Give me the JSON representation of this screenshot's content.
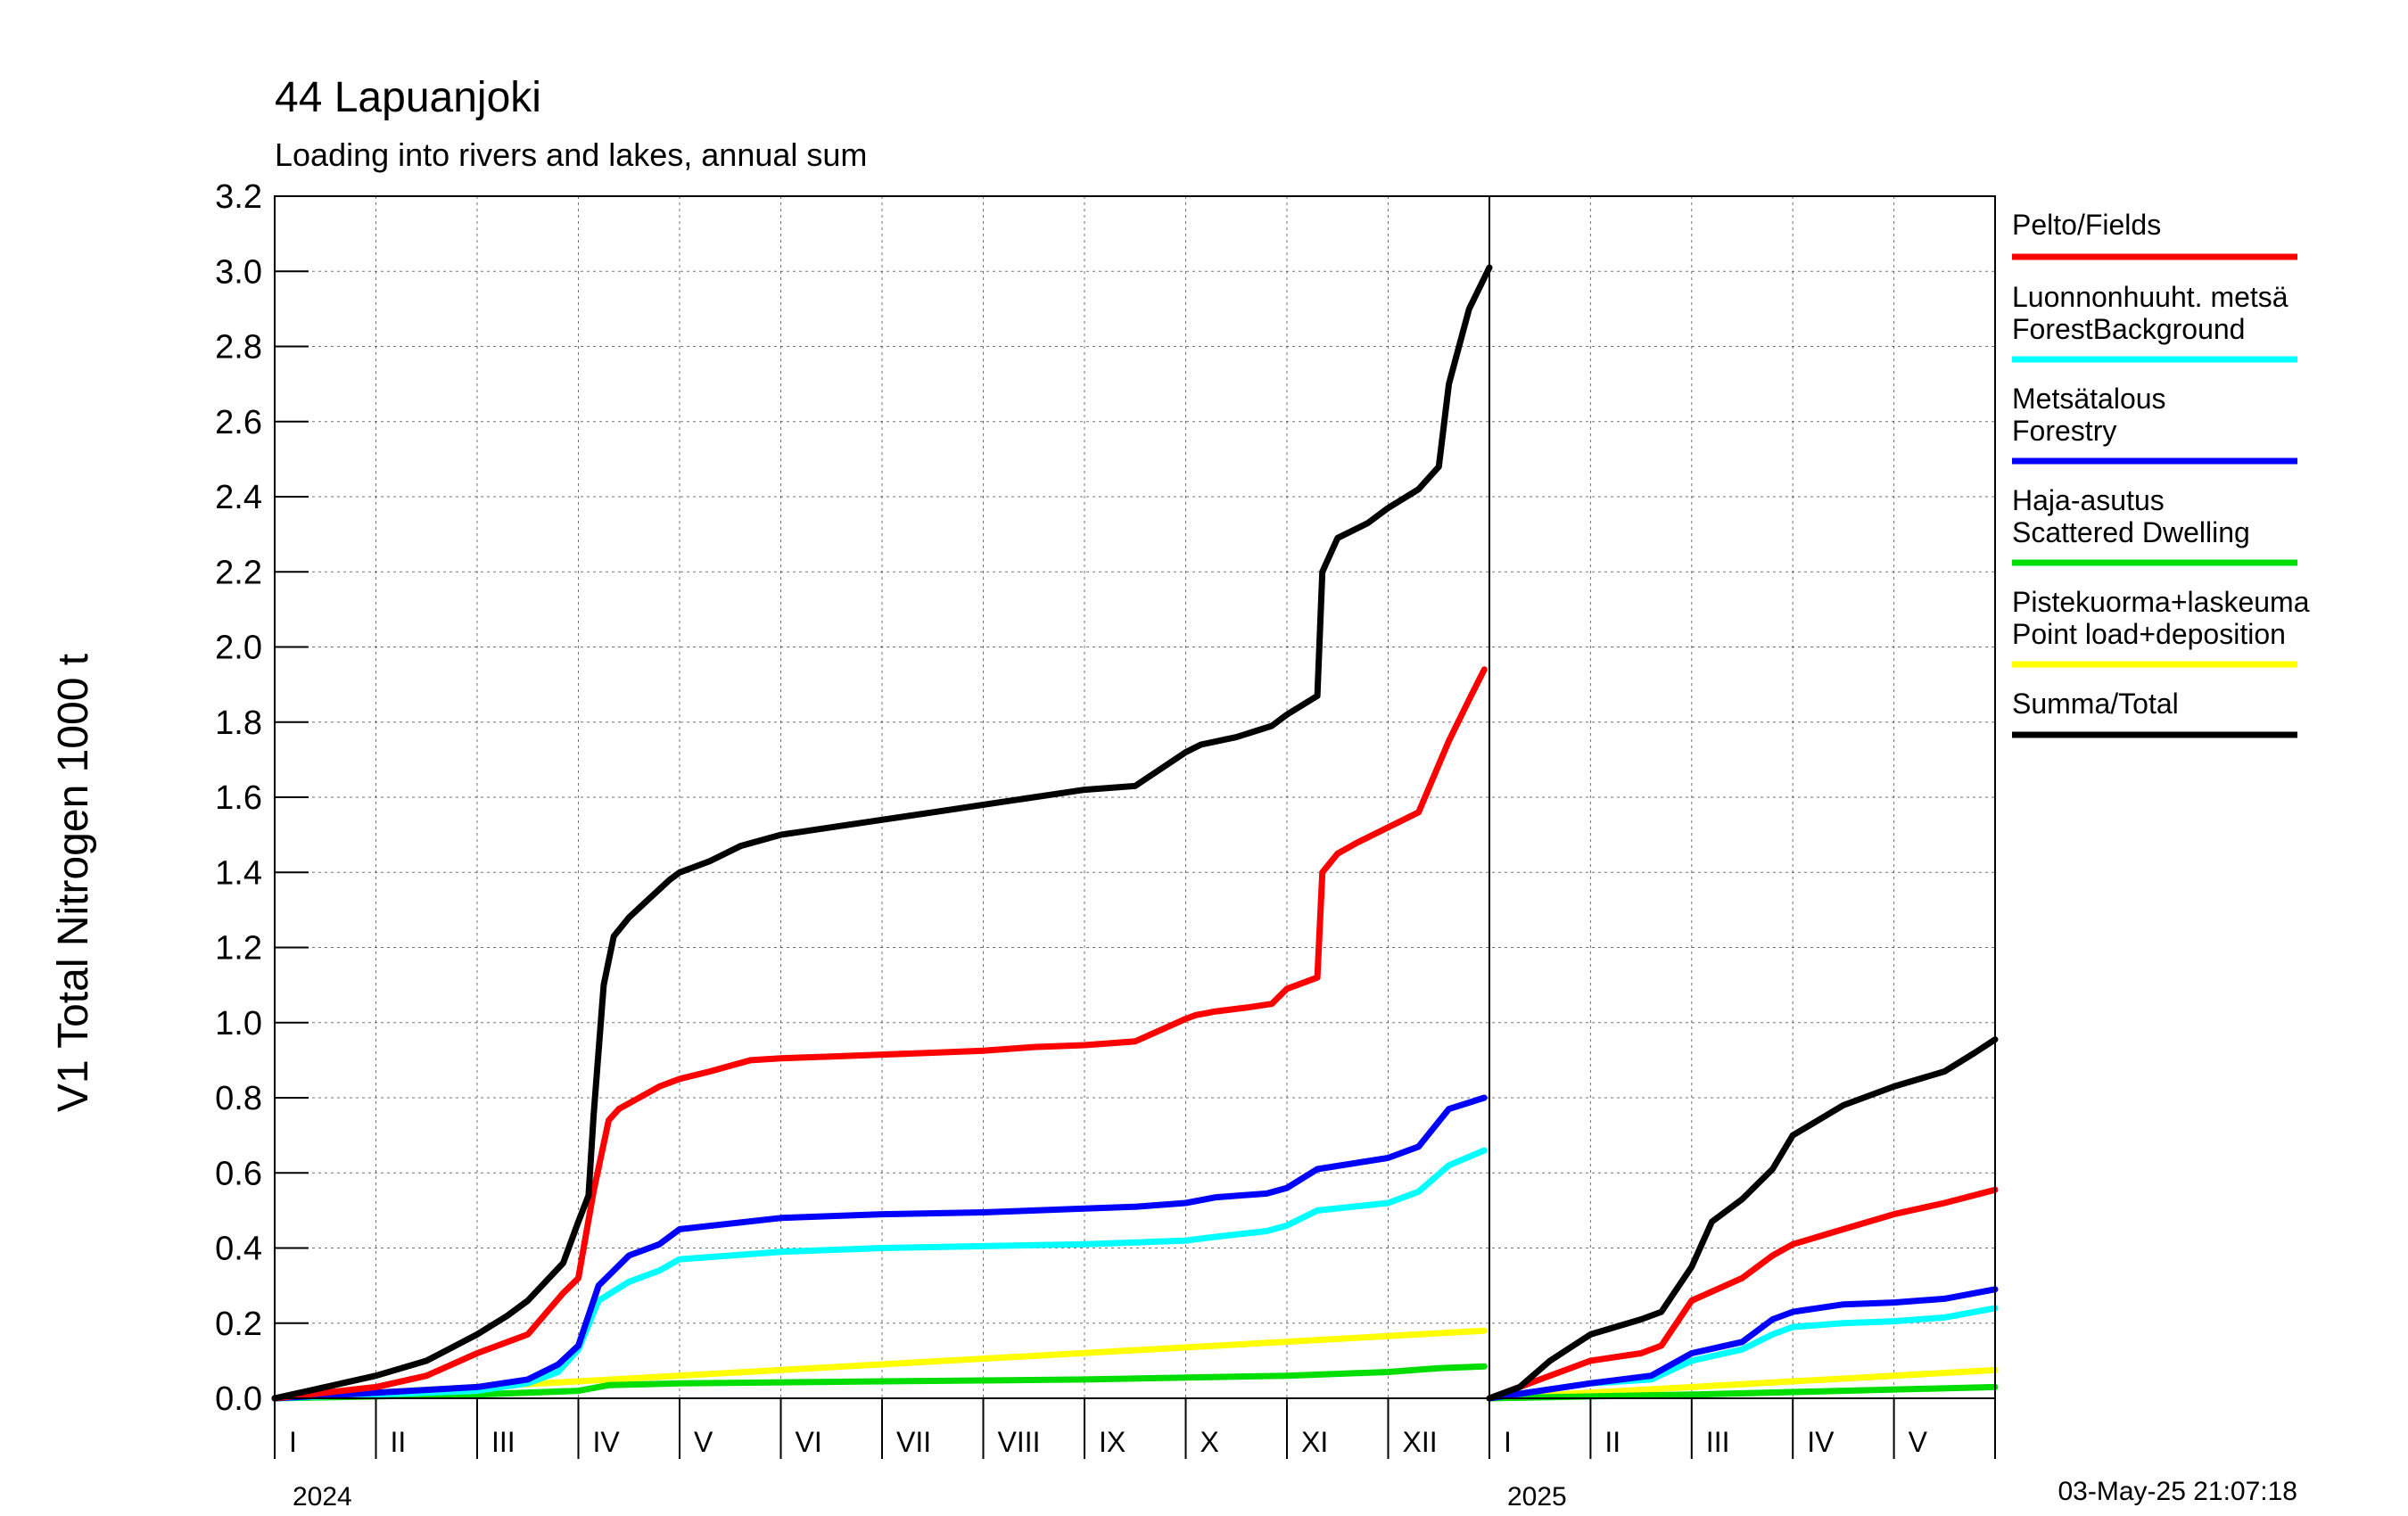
{
  "title": "44 Lapuanjoki",
  "subtitle": "Loading into rivers and lakes, annual sum",
  "timestamp": "03-May-25 21:07:18",
  "colors": {
    "fields": "#ff0000",
    "forest_background": "#00ffff",
    "forestry": "#0000ff",
    "scattered_dwelling": "#00dd00",
    "point_load": "#ffff00",
    "total": "#000000"
  },
  "chart_data": {
    "type": "line",
    "ylabel": "V1 Total Nitrogen 1000 t",
    "ylim": [
      0.0,
      3.2
    ],
    "yticks": [
      "0.0",
      "0.2",
      "0.4",
      "0.6",
      "0.8",
      "1.0",
      "1.2",
      "1.4",
      "1.6",
      "1.8",
      "2.0",
      "2.2",
      "2.4",
      "2.6",
      "2.8",
      "3.0",
      "3.2"
    ],
    "grid": true,
    "legend_position": "right",
    "panels": [
      {
        "year": "2024",
        "xlim": [
          0,
          12
        ],
        "months": [
          "I",
          "II",
          "III",
          "IV",
          "V",
          "VI",
          "VII",
          "VIII",
          "IX",
          "X",
          "XI",
          "XII"
        ],
        "series": [
          {
            "key": "fields",
            "legend": [
              "Pelto/Fields"
            ],
            "color": "#ff0000",
            "x": [
              0,
              1,
              1.5,
              2,
              2.5,
              2.85,
              3,
              3.15,
              3.3,
              3.4,
              3.6,
              3.8,
              4,
              4.3,
              4.7,
              5,
              5.5,
              6,
              6.5,
              7,
              7.5,
              8,
              8.5,
              9,
              9.1,
              9.3,
              9.6,
              9.85,
              10,
              10.3,
              10.35,
              10.5,
              10.7,
              11,
              11.3,
              11.6,
              11.8,
              11.95
            ],
            "y": [
              0,
              0.03,
              0.06,
              0.12,
              0.17,
              0.28,
              0.32,
              0.55,
              0.74,
              0.77,
              0.8,
              0.83,
              0.85,
              0.87,
              0.9,
              0.905,
              0.91,
              0.915,
              0.92,
              0.925,
              0.935,
              0.94,
              0.95,
              1.01,
              1.02,
              1.03,
              1.04,
              1.05,
              1.09,
              1.12,
              1.4,
              1.45,
              1.48,
              1.52,
              1.56,
              1.75,
              1.86,
              1.94
            ]
          },
          {
            "key": "forest_background",
            "legend": [
              "Luonnonhuuht. metsä",
              "ForestBackground"
            ],
            "color": "#00ffff",
            "x": [
              0,
              1,
              2,
              2.5,
              2.8,
              3,
              3.2,
              3.5,
              3.8,
              4,
              5,
              6,
              7,
              8,
              8.5,
              9,
              9.3,
              9.8,
              10,
              10.3,
              11,
              11.3,
              11.6,
              11.95
            ],
            "y": [
              0,
              0.01,
              0.02,
              0.04,
              0.07,
              0.13,
              0.26,
              0.31,
              0.34,
              0.37,
              0.39,
              0.4,
              0.405,
              0.41,
              0.415,
              0.42,
              0.43,
              0.445,
              0.46,
              0.5,
              0.52,
              0.55,
              0.62,
              0.66
            ]
          },
          {
            "key": "forestry",
            "legend": [
              "Metsätalous",
              "Forestry"
            ],
            "color": "#0000ff",
            "x": [
              0,
              1,
              2,
              2.5,
              2.8,
              3,
              3.2,
              3.5,
              3.8,
              4,
              5,
              6,
              7,
              8,
              8.5,
              9,
              9.3,
              9.8,
              10,
              10.3,
              11,
              11.3,
              11.6,
              11.95
            ],
            "y": [
              0,
              0.015,
              0.03,
              0.05,
              0.09,
              0.14,
              0.3,
              0.38,
              0.41,
              0.45,
              0.48,
              0.49,
              0.495,
              0.505,
              0.51,
              0.52,
              0.535,
              0.545,
              0.56,
              0.61,
              0.64,
              0.67,
              0.77,
              0.8
            ]
          },
          {
            "key": "scattered_dwelling",
            "legend": [
              "Haja-asutus",
              "Scattered Dwelling"
            ],
            "color": "#00dd00",
            "x": [
              0,
              2,
              3,
              3.3,
              4,
              6,
              8,
              10,
              11,
              11.5,
              11.95
            ],
            "y": [
              0,
              0.01,
              0.02,
              0.035,
              0.04,
              0.045,
              0.05,
              0.06,
              0.07,
              0.08,
              0.085
            ]
          },
          {
            "key": "point_load",
            "legend": [
              "Pistekuorma+laskeuma",
              "Point load+deposition"
            ],
            "color": "#ffff00",
            "x": [
              0,
              11.95
            ],
            "y": [
              0,
              0.18
            ]
          },
          {
            "key": "total",
            "legend": [
              "Summa/Total"
            ],
            "color": "#000000",
            "x": [
              0,
              0.5,
              1,
              1.5,
              2,
              2.3,
              2.5,
              2.85,
              3,
              3.1,
              3.15,
              3.25,
              3.35,
              3.5,
              3.7,
              3.9,
              4,
              4.3,
              4.6,
              5,
              5.5,
              6,
              6.5,
              7,
              7.5,
              8,
              8.5,
              9,
              9.15,
              9.5,
              9.85,
              10,
              10.3,
              10.35,
              10.5,
              10.8,
              11,
              11.3,
              11.5,
              11.6,
              11.8,
              12
            ],
            "y": [
              0,
              0.03,
              0.06,
              0.1,
              0.17,
              0.22,
              0.26,
              0.36,
              0.47,
              0.54,
              0.75,
              1.1,
              1.23,
              1.28,
              1.33,
              1.38,
              1.4,
              1.43,
              1.47,
              1.5,
              1.52,
              1.54,
              1.56,
              1.58,
              1.6,
              1.62,
              1.63,
              1.72,
              1.74,
              1.76,
              1.79,
              1.82,
              1.87,
              2.2,
              2.29,
              2.33,
              2.37,
              2.42,
              2.48,
              2.7,
              2.9,
              3.01
            ]
          }
        ]
      },
      {
        "year": "2025",
        "xlim": [
          0,
          5
        ],
        "months": [
          "I",
          "II",
          "III",
          "IV",
          "V"
        ],
        "series": [
          {
            "key": "fields",
            "color": "#ff0000",
            "x": [
              0,
              0.5,
              1,
              1.5,
              1.7,
              2,
              2.5,
              2.8,
              3,
              3.5,
              4,
              4.5,
              5
            ],
            "y": [
              0,
              0.05,
              0.1,
              0.12,
              0.14,
              0.26,
              0.32,
              0.38,
              0.41,
              0.45,
              0.49,
              0.52,
              0.555
            ]
          },
          {
            "key": "forest_background",
            "color": "#00ffff",
            "x": [
              0,
              1,
              1.6,
              2,
              2.5,
              2.8,
              3,
              3.5,
              4,
              4.5,
              5
            ],
            "y": [
              0,
              0.04,
              0.05,
              0.1,
              0.13,
              0.17,
              0.19,
              0.2,
              0.205,
              0.215,
              0.24
            ]
          },
          {
            "key": "forestry",
            "color": "#0000ff",
            "x": [
              0,
              1,
              1.6,
              2,
              2.5,
              2.8,
              3,
              3.5,
              4,
              4.5,
              5
            ],
            "y": [
              0,
              0.04,
              0.06,
              0.12,
              0.15,
              0.21,
              0.23,
              0.25,
              0.255,
              0.265,
              0.29
            ]
          },
          {
            "key": "scattered_dwelling",
            "color": "#00dd00",
            "x": [
              0,
              2,
              5
            ],
            "y": [
              0,
              0.01,
              0.03
            ]
          },
          {
            "key": "point_load",
            "color": "#ffff00",
            "x": [
              0,
              5
            ],
            "y": [
              0,
              0.075
            ]
          },
          {
            "key": "total",
            "color": "#000000",
            "x": [
              0,
              0.3,
              0.6,
              1,
              1.5,
              1.7,
              2,
              2.2,
              2.5,
              2.8,
              3,
              3.5,
              4,
              4.5,
              4.8,
              5
            ],
            "y": [
              0,
              0.03,
              0.1,
              0.17,
              0.21,
              0.23,
              0.35,
              0.47,
              0.53,
              0.61,
              0.7,
              0.78,
              0.83,
              0.87,
              0.92,
              0.955
            ]
          }
        ]
      }
    ]
  }
}
